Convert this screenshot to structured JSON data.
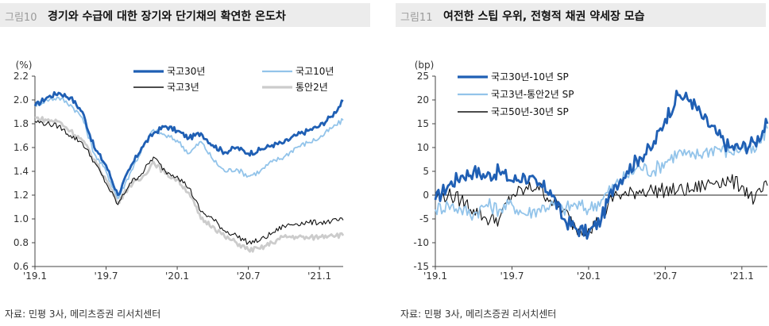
{
  "panels": [
    {
      "figure_no": "그림10",
      "title": "경기와 수급에 대한 장기와 단기채의 확연한 온도차",
      "source": "자료: 민평 3사, 메리츠증권 리서치센터"
    },
    {
      "figure_no": "그림11",
      "title": "여전한 스팁 우위, 전형적 채권 약세장 모습",
      "source": "자료: 민평 3사, 메리츠증권 리서치센터"
    }
  ],
  "chart_data": [
    {
      "type": "line",
      "title": "경기와 수급에 대한 장기와 단기채의 확연한 온도차",
      "ylabel": "(%)",
      "ylim": [
        0.6,
        2.2
      ],
      "yticks": [
        "0.6",
        "0.8",
        "1.0",
        "1.2",
        "1.4",
        "1.6",
        "1.8",
        "2.0",
        "2.2"
      ],
      "x_range": [
        "2019-01",
        "2021-03"
      ],
      "xticks": [
        {
          "date": "2019-01",
          "label": "'19.1"
        },
        {
          "date": "2019-07",
          "label": "'19.7"
        },
        {
          "date": "2020-01",
          "label": "'20.1"
        },
        {
          "date": "2020-07",
          "label": "'20.7"
        },
        {
          "date": "2021-01",
          "label": "'21.1"
        }
      ],
      "grid": false,
      "legend": "top-right",
      "series": [
        {
          "name": "국고30년",
          "color": "#1f5fb4",
          "style": "thick",
          "points": [
            [
              "2019-01",
              1.95
            ],
            [
              "2019-02",
              2.02
            ],
            [
              "2019-03",
              2.06
            ],
            [
              "2019-04",
              2.02
            ],
            [
              "2019-05",
              1.9
            ],
            [
              "2019-06",
              1.6
            ],
            [
              "2019-07",
              1.45
            ],
            [
              "2019-08",
              1.2
            ],
            [
              "2019-09",
              1.42
            ],
            [
              "2019-10",
              1.6
            ],
            [
              "2019-11",
              1.72
            ],
            [
              "2019-12",
              1.78
            ],
            [
              "2020-01",
              1.74
            ],
            [
              "2020-02",
              1.68
            ],
            [
              "2020-03",
              1.72
            ],
            [
              "2020-04",
              1.62
            ],
            [
              "2020-05",
              1.56
            ],
            [
              "2020-06",
              1.6
            ],
            [
              "2020-07",
              1.55
            ],
            [
              "2020-08",
              1.58
            ],
            [
              "2020-09",
              1.62
            ],
            [
              "2020-10",
              1.64
            ],
            [
              "2020-11",
              1.7
            ],
            [
              "2020-12",
              1.74
            ],
            [
              "2021-01",
              1.78
            ],
            [
              "2021-02",
              1.86
            ],
            [
              "2021-03",
              1.99
            ]
          ]
        },
        {
          "name": "국고10년",
          "color": "#93c4ea",
          "style": "medium",
          "points": [
            [
              "2019-01",
              1.96
            ],
            [
              "2019-02",
              2.0
            ],
            [
              "2019-03",
              2.02
            ],
            [
              "2019-04",
              1.96
            ],
            [
              "2019-05",
              1.85
            ],
            [
              "2019-06",
              1.55
            ],
            [
              "2019-07",
              1.4
            ],
            [
              "2019-08",
              1.17
            ],
            [
              "2019-09",
              1.38
            ],
            [
              "2019-10",
              1.58
            ],
            [
              "2019-11",
              1.75
            ],
            [
              "2019-12",
              1.7
            ],
            [
              "2020-01",
              1.66
            ],
            [
              "2020-02",
              1.55
            ],
            [
              "2020-03",
              1.65
            ],
            [
              "2020-04",
              1.5
            ],
            [
              "2020-05",
              1.4
            ],
            [
              "2020-06",
              1.42
            ],
            [
              "2020-07",
              1.36
            ],
            [
              "2020-08",
              1.4
            ],
            [
              "2020-09",
              1.48
            ],
            [
              "2020-10",
              1.52
            ],
            [
              "2020-11",
              1.6
            ],
            [
              "2020-12",
              1.64
            ],
            [
              "2021-01",
              1.68
            ],
            [
              "2021-02",
              1.76
            ],
            [
              "2021-03",
              1.83
            ]
          ]
        },
        {
          "name": "국고3년",
          "color": "#111111",
          "style": "thin",
          "points": [
            [
              "2019-01",
              1.82
            ],
            [
              "2019-02",
              1.8
            ],
            [
              "2019-03",
              1.78
            ],
            [
              "2019-04",
              1.7
            ],
            [
              "2019-05",
              1.64
            ],
            [
              "2019-06",
              1.48
            ],
            [
              "2019-07",
              1.3
            ],
            [
              "2019-08",
              1.12
            ],
            [
              "2019-09",
              1.3
            ],
            [
              "2019-10",
              1.38
            ],
            [
              "2019-11",
              1.52
            ],
            [
              "2019-12",
              1.4
            ],
            [
              "2020-01",
              1.36
            ],
            [
              "2020-02",
              1.26
            ],
            [
              "2020-03",
              1.06
            ],
            [
              "2020-04",
              1.0
            ],
            [
              "2020-05",
              0.9
            ],
            [
              "2020-06",
              0.86
            ],
            [
              "2020-07",
              0.8
            ],
            [
              "2020-08",
              0.82
            ],
            [
              "2020-09",
              0.88
            ],
            [
              "2020-10",
              0.94
            ],
            [
              "2020-11",
              0.96
            ],
            [
              "2020-12",
              0.97
            ],
            [
              "2021-01",
              0.97
            ],
            [
              "2021-02",
              0.98
            ],
            [
              "2021-03",
              0.99
            ]
          ]
        },
        {
          "name": "통안2년",
          "color": "#cccccc",
          "style": "thick",
          "points": [
            [
              "2019-01",
              1.85
            ],
            [
              "2019-02",
              1.83
            ],
            [
              "2019-03",
              1.82
            ],
            [
              "2019-04",
              1.74
            ],
            [
              "2019-05",
              1.66
            ],
            [
              "2019-06",
              1.5
            ],
            [
              "2019-07",
              1.33
            ],
            [
              "2019-08",
              1.14
            ],
            [
              "2019-09",
              1.28
            ],
            [
              "2019-10",
              1.34
            ],
            [
              "2019-11",
              1.48
            ],
            [
              "2019-12",
              1.38
            ],
            [
              "2020-01",
              1.33
            ],
            [
              "2020-02",
              1.22
            ],
            [
              "2020-03",
              1.0
            ],
            [
              "2020-04",
              0.94
            ],
            [
              "2020-05",
              0.85
            ],
            [
              "2020-06",
              0.8
            ],
            [
              "2020-07",
              0.74
            ],
            [
              "2020-08",
              0.75
            ],
            [
              "2020-09",
              0.8
            ],
            [
              "2020-10",
              0.85
            ],
            [
              "2020-11",
              0.85
            ],
            [
              "2020-12",
              0.84
            ],
            [
              "2021-01",
              0.85
            ],
            [
              "2021-02",
              0.87
            ],
            [
              "2021-03",
              0.86
            ]
          ]
        }
      ]
    },
    {
      "type": "line",
      "title": "여전한 스팁 우위, 전형적 채권 약세장 모습",
      "ylabel": "(bp)",
      "ylim": [
        -15,
        25
      ],
      "yticks": [
        "-15",
        "-10",
        "-5",
        "0",
        "5",
        "10",
        "15",
        "20",
        "25"
      ],
      "x_range": [
        "2019-01",
        "2021-03"
      ],
      "xticks": [
        {
          "date": "2019-01",
          "label": "'19.1"
        },
        {
          "date": "2019-07",
          "label": "'19.7"
        },
        {
          "date": "2020-01",
          "label": "'20.1"
        },
        {
          "date": "2020-07",
          "label": "'20.7"
        },
        {
          "date": "2021-01",
          "label": "'21.1"
        }
      ],
      "grid": false,
      "legend": "top-left",
      "series": [
        {
          "name": "국고30년-10년 SP",
          "color": "#1f5fb4",
          "style": "thick",
          "points": [
            [
              "2019-01",
              -1
            ],
            [
              "2019-02",
              2
            ],
            [
              "2019-03",
              4
            ],
            [
              "2019-04",
              5
            ],
            [
              "2019-05",
              4
            ],
            [
              "2019-06",
              5
            ],
            [
              "2019-07",
              3
            ],
            [
              "2019-08",
              4
            ],
            [
              "2019-09",
              2
            ],
            [
              "2019-10",
              1
            ],
            [
              "2019-11",
              -5
            ],
            [
              "2019-12",
              -7
            ],
            [
              "2020-01",
              -8
            ],
            [
              "2020-02",
              -5
            ],
            [
              "2020-03",
              2
            ],
            [
              "2020-04",
              5
            ],
            [
              "2020-05",
              8
            ],
            [
              "2020-06",
              10
            ],
            [
              "2020-07",
              16
            ],
            [
              "2020-08",
              21
            ],
            [
              "2020-09",
              20
            ],
            [
              "2020-10",
              16
            ],
            [
              "2020-11",
              13
            ],
            [
              "2020-12",
              10
            ],
            [
              "2021-01",
              10
            ],
            [
              "2021-02",
              11
            ],
            [
              "2021-03",
              15
            ]
          ]
        },
        {
          "name": "국고3년-통안2년 SP",
          "color": "#93c4ea",
          "style": "medium",
          "points": [
            [
              "2019-01",
              -3
            ],
            [
              "2019-02",
              -2
            ],
            [
              "2019-03",
              -3
            ],
            [
              "2019-04",
              -4
            ],
            [
              "2019-05",
              -2
            ],
            [
              "2019-06",
              -3
            ],
            [
              "2019-07",
              -2
            ],
            [
              "2019-08",
              -4
            ],
            [
              "2019-09",
              -3
            ],
            [
              "2019-10",
              -2
            ],
            [
              "2019-11",
              -3
            ],
            [
              "2019-12",
              -2
            ],
            [
              "2020-01",
              -3
            ],
            [
              "2020-02",
              -1
            ],
            [
              "2020-03",
              2
            ],
            [
              "2020-04",
              4
            ],
            [
              "2020-05",
              6
            ],
            [
              "2020-06",
              5
            ],
            [
              "2020-07",
              7
            ],
            [
              "2020-08",
              9
            ],
            [
              "2020-09",
              8
            ],
            [
              "2020-10",
              9
            ],
            [
              "2020-11",
              10
            ],
            [
              "2020-12",
              9
            ],
            [
              "2021-01",
              10
            ],
            [
              "2021-02",
              9
            ],
            [
              "2021-03",
              14
            ]
          ]
        },
        {
          "name": "국고50년-30년 SP",
          "color": "#111111",
          "style": "thin",
          "points": [
            [
              "2019-01",
              0
            ],
            [
              "2019-02",
              0
            ],
            [
              "2019-03",
              -1
            ],
            [
              "2019-04",
              -3
            ],
            [
              "2019-05",
              -5
            ],
            [
              "2019-06",
              -5
            ],
            [
              "2019-07",
              0
            ],
            [
              "2019-08",
              1
            ],
            [
              "2019-09",
              2
            ],
            [
              "2019-10",
              -1
            ],
            [
              "2019-11",
              -3
            ],
            [
              "2019-12",
              -7
            ],
            [
              "2020-01",
              -7
            ],
            [
              "2020-02",
              -5
            ],
            [
              "2020-03",
              0
            ],
            [
              "2020-04",
              0
            ],
            [
              "2020-05",
              1
            ],
            [
              "2020-06",
              1
            ],
            [
              "2020-07",
              1
            ],
            [
              "2020-08",
              1
            ],
            [
              "2020-09",
              1
            ],
            [
              "2020-10",
              2
            ],
            [
              "2020-11",
              3
            ],
            [
              "2020-12",
              3
            ],
            [
              "2021-01",
              2
            ],
            [
              "2021-02",
              -1
            ],
            [
              "2021-03",
              2
            ]
          ]
        }
      ]
    }
  ]
}
